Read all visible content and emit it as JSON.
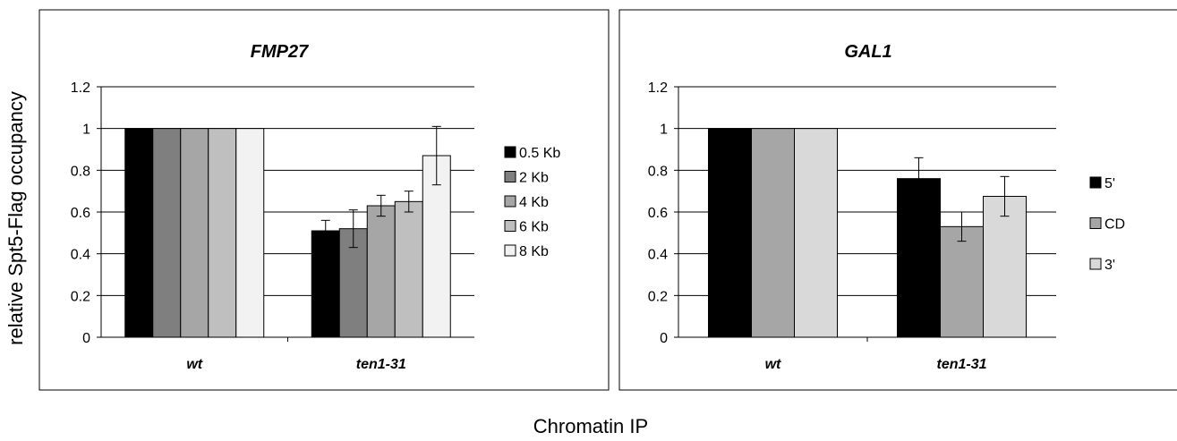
{
  "figure": {
    "ylabel": "relative Spt5-Flag occupancy",
    "xlabel": "Chromatin IP"
  },
  "chart_data": [
    {
      "type": "bar",
      "title": "FMP27",
      "categories": [
        "wt",
        "ten1-31"
      ],
      "ylim": [
        0,
        1.2
      ],
      "yticks": [
        0,
        0.2,
        0.4,
        0.6,
        0.8,
        1,
        1.2
      ],
      "ytick_labels": [
        "0",
        "0.2",
        "0.4",
        "0.6",
        "0.8",
        "1",
        "1.2"
      ],
      "grid": true,
      "legend_position": "right",
      "series": [
        {
          "name": "0.5 Kb",
          "color": "#000000",
          "values": [
            1,
            0.51
          ],
          "errors": [
            0,
            0.05
          ]
        },
        {
          "name": "2 Kb",
          "color": "#7f7f7f",
          "values": [
            1,
            0.52
          ],
          "errors": [
            0,
            0.09
          ]
        },
        {
          "name": "4 Kb",
          "color": "#a6a6a6",
          "values": [
            1,
            0.63
          ],
          "errors": [
            0,
            0.05
          ]
        },
        {
          "name": "6 Kb",
          "color": "#bfbfbf",
          "values": [
            1,
            0.65
          ],
          "errors": [
            0,
            0.05
          ]
        },
        {
          "name": "8 Kb",
          "color": "#f2f2f2",
          "values": [
            1,
            0.87
          ],
          "errors": [
            0,
            0.14
          ]
        }
      ]
    },
    {
      "type": "bar",
      "title": "GAL1",
      "categories": [
        "wt",
        "ten1-31"
      ],
      "ylim": [
        0,
        1.2
      ],
      "yticks": [
        0,
        0.2,
        0.4,
        0.6,
        0.8,
        1,
        1.2
      ],
      "ytick_labels": [
        "0",
        "0.2",
        "0.4",
        "0.6",
        "0.8",
        "1",
        "1.2"
      ],
      "grid": true,
      "legend_position": "right",
      "series": [
        {
          "name": "5'",
          "color": "#000000",
          "values": [
            1,
            0.76
          ],
          "errors": [
            0,
            0.1
          ]
        },
        {
          "name": "CD",
          "color": "#a6a6a6",
          "values": [
            1,
            0.53
          ],
          "errors": [
            0,
            0.07
          ]
        },
        {
          "name": "3'",
          "color": "#d9d9d9",
          "values": [
            1,
            0.675
          ],
          "errors": [
            0,
            0.095
          ]
        }
      ]
    }
  ]
}
